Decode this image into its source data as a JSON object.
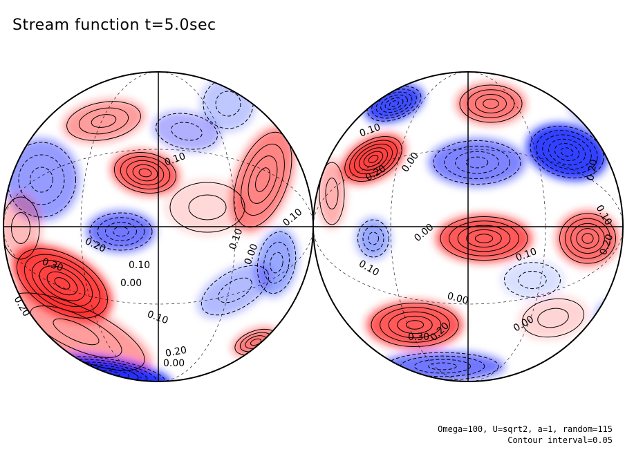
{
  "title": "Stream function t=5.0sec",
  "footer": {
    "params": "Omega=100, U=sqrt2, a=1, random=115",
    "contour": "Contour interval=0.05"
  },
  "colors": {
    "positive": "#ff2020",
    "negative": "#1020ff",
    "background": "#ffffff"
  },
  "hemispheres": [
    {
      "name": "left",
      "labels": [
        "0.10",
        "0.20",
        "0.30",
        "0.10",
        "0.00",
        "0.10",
        "0.20",
        "0.00",
        "0.10",
        "0.00",
        "0.10",
        "0.20"
      ]
    },
    {
      "name": "right",
      "labels": [
        "0.10",
        "0.20",
        "0.00",
        "0.00",
        "0.20",
        "0.10",
        "0.10",
        "0.00",
        "0.30",
        "0.20",
        "0.20",
        "0.10",
        "0.00"
      ]
    }
  ]
}
